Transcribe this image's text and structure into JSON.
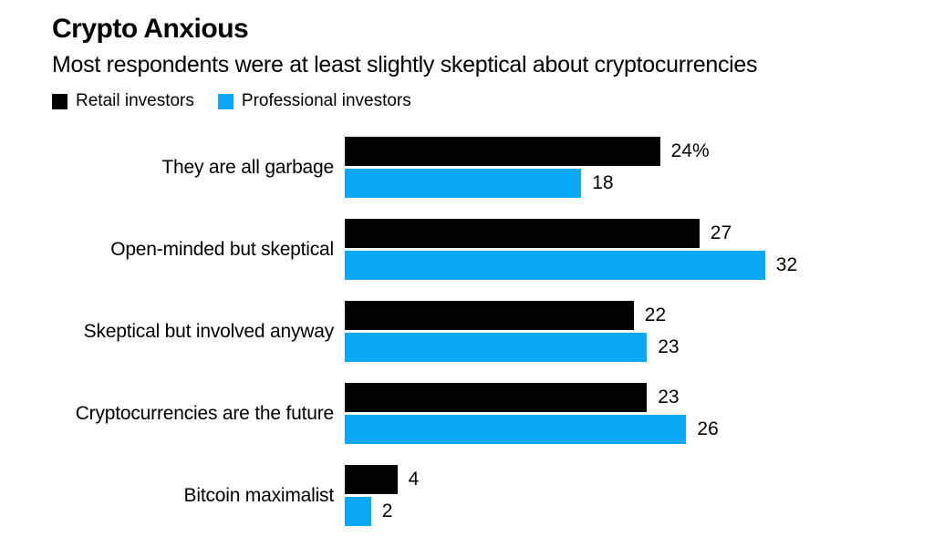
{
  "title": "Crypto Anxious",
  "subtitle": "Most respondents were at least slightly skeptical about cryptocurrencies",
  "legend": [
    {
      "label": "Retail investors",
      "color": "#000000"
    },
    {
      "label": "Professional investors",
      "color": "#0aa9f4"
    }
  ],
  "chart_data": {
    "type": "bar",
    "orientation": "horizontal",
    "title": "Crypto Anxious",
    "subtitle": "Most respondents were at least slightly skeptical about cryptocurrencies",
    "categories": [
      "They are all garbage",
      "Open-minded but skeptical",
      "Skeptical but involved anyway",
      "Cryptocurrencies are the future",
      "Bitcoin maximalist"
    ],
    "series": [
      {
        "name": "Retail investors",
        "color": "#000000",
        "values": [
          24,
          27,
          22,
          23,
          4
        ]
      },
      {
        "name": "Professional investors",
        "color": "#0aa9f4",
        "values": [
          18,
          32,
          23,
          26,
          2
        ]
      }
    ],
    "value_labels": [
      [
        "24%",
        "18"
      ],
      [
        "27",
        "32"
      ],
      [
        "22",
        "23"
      ],
      [
        "23",
        "26"
      ],
      [
        "4",
        "2"
      ]
    ],
    "unit": "%",
    "xlim": [
      0,
      32
    ],
    "grid": false,
    "legend_position": "top-left"
  }
}
